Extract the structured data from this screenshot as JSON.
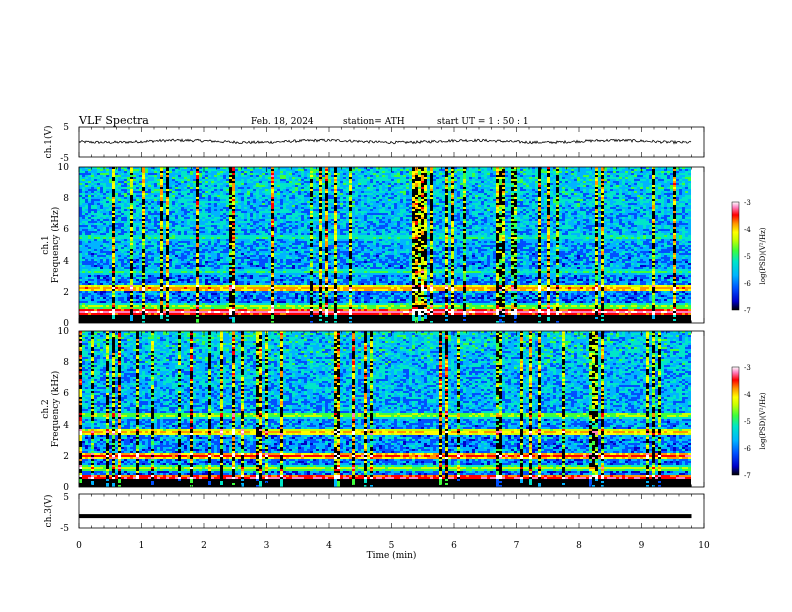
{
  "header": {
    "title": "VLF  Spectra",
    "date": "Feb. 18, 2024",
    "station": "station= ATH",
    "start_ut": "start  UT  =    1  : 50 : 1"
  },
  "chart_data": [
    {
      "type": "line",
      "panel": "ch1-waveform",
      "ylabel": "ch.1(V)",
      "ylim": [
        -5,
        5
      ],
      "yticks": [
        "5",
        "-5"
      ],
      "xlim": [
        0,
        10
      ],
      "trace_end_min": 9.8,
      "baseline_V": 0.2,
      "color": "#000000"
    },
    {
      "type": "heatmap",
      "panel": "ch1-spectrogram",
      "ylabel_line1": "ch.1",
      "ylabel_line2": "Frequency  (kHz)",
      "ylim": [
        0,
        10
      ],
      "yticks": [
        "0",
        "2",
        "4",
        "6",
        "8",
        "10"
      ],
      "xlim": [
        0,
        10
      ],
      "data_end_min": 9.8,
      "bands": [
        {
          "f_khz": 2.2,
          "level": 0.75
        },
        {
          "f_khz": 1.05,
          "level": 0.55
        },
        {
          "f_khz": 0.7,
          "level": 0.9
        },
        {
          "f_khz": 3.3,
          "level": 0.45
        },
        {
          "f_khz": 5.5,
          "level": 0.45
        }
      ],
      "colorbar": {
        "label": "log(PSD)(V²/Hz)",
        "ticks": [
          "-3",
          "-4",
          "-5",
          "-6",
          "-7"
        ],
        "range": [
          -7,
          -3
        ]
      }
    },
    {
      "type": "heatmap",
      "panel": "ch2-spectrogram",
      "ylabel_line1": "ch.2",
      "ylabel_line2": "Frequency  (kHz)",
      "ylim": [
        0,
        10
      ],
      "yticks": [
        "0",
        "2",
        "4",
        "6",
        "8",
        "10"
      ],
      "xlim": [
        0,
        10
      ],
      "data_end_min": 9.8,
      "bands": [
        {
          "f_khz": 2.0,
          "level": 0.8
        },
        {
          "f_khz": 3.5,
          "level": 0.7
        },
        {
          "f_khz": 4.6,
          "level": 0.55
        },
        {
          "f_khz": 1.2,
          "level": 0.55
        },
        {
          "f_khz": 0.6,
          "level": 0.85
        }
      ],
      "colorbar": {
        "label": "log(PSD)(V²/Hz)",
        "ticks": [
          "-3",
          "-4",
          "-5",
          "-6",
          "-7"
        ],
        "range": [
          -7,
          -3
        ]
      }
    },
    {
      "type": "line",
      "panel": "ch3-waveform",
      "ylabel": "ch.3(V)",
      "ylim": [
        -5,
        5
      ],
      "yticks": [
        "5",
        "-5"
      ],
      "xlim": [
        0,
        10
      ],
      "trace_end_min": 9.8,
      "baseline_V": -1.5,
      "color": "#000000"
    }
  ],
  "x_axis": {
    "label": "Time  (min)",
    "ticks": [
      "0",
      "1",
      "2",
      "3",
      "4",
      "5",
      "6",
      "7",
      "8",
      "9",
      "10"
    ]
  },
  "colorscale": [
    "#000000",
    "#0000c8",
    "#0050ff",
    "#00b4ff",
    "#00e6c8",
    "#3cff3c",
    "#c8ff00",
    "#ffff00",
    "#ff9600",
    "#ff0000",
    "#ff80c0",
    "#ffffff"
  ]
}
